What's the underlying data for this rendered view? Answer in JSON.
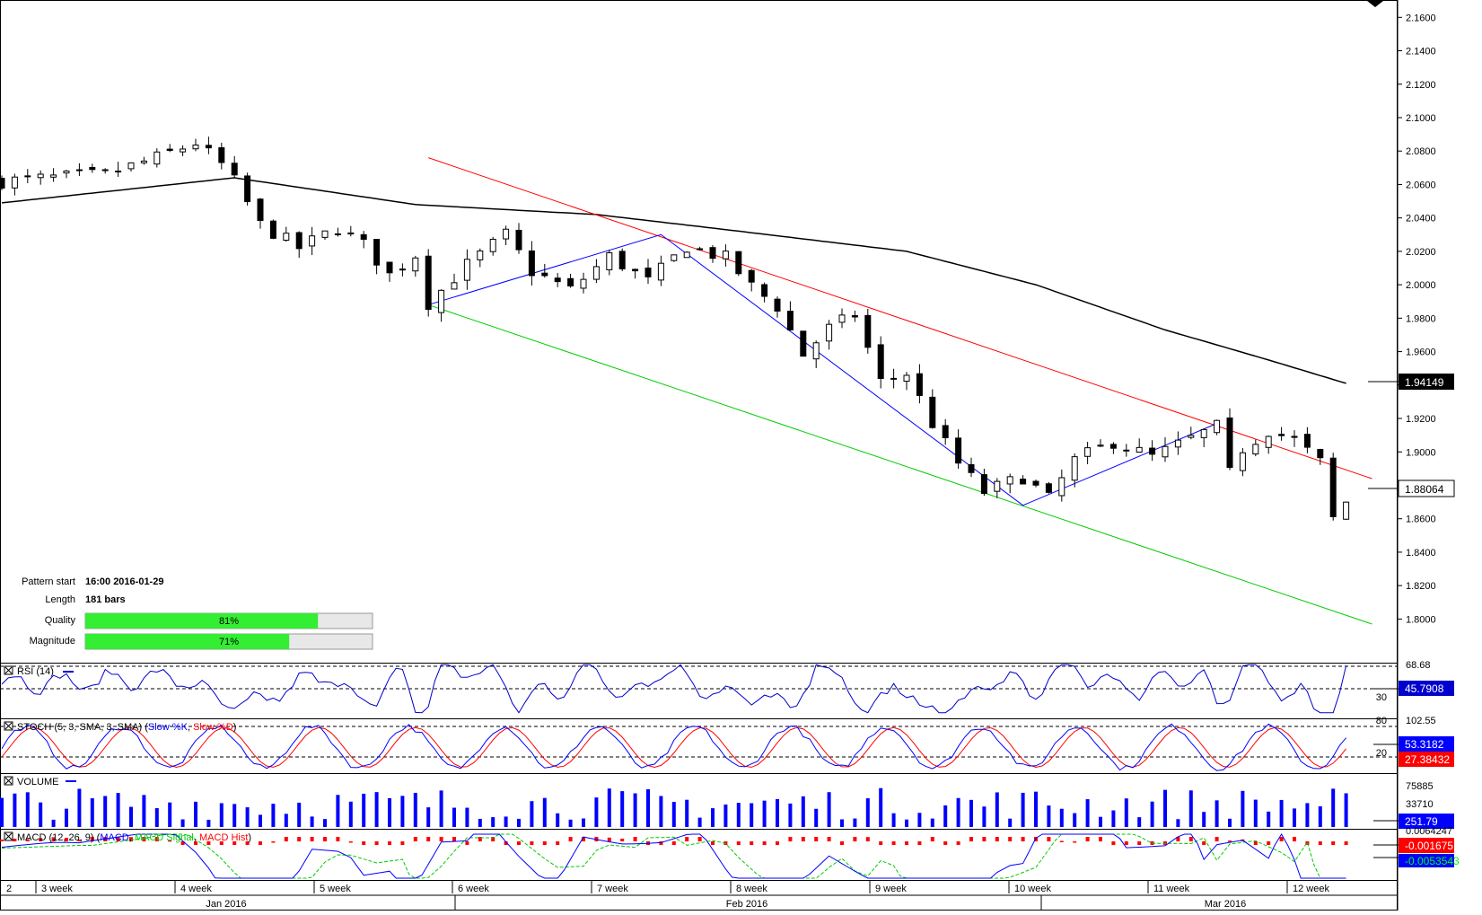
{
  "main_panel": {
    "y_ticks": [
      "2.1600",
      "2.1400",
      "2.1200",
      "2.1000",
      "2.0800",
      "2.0600",
      "2.0400",
      "2.0200",
      "2.0000",
      "1.9800",
      "1.9600",
      "1.9400",
      "1.9200",
      "1.9000",
      "1.8800",
      "1.8600",
      "1.8400",
      "1.8200",
      "1.8000"
    ],
    "ylim": [
      1.79,
      2.165
    ],
    "last_price_ma": "1.94149",
    "last_price": "1.88064"
  },
  "pattern": {
    "start_label": "Pattern start",
    "start_value": "16:00 2016-01-29",
    "length_label": "Length",
    "length_value": "181 bars",
    "quality_label": "Quality",
    "quality_value": "81%",
    "quality_fraction": 0.81,
    "magnitude_label": "Magnitude",
    "magnitude_value": "71%",
    "magnitude_fraction": 0.71
  },
  "rsi": {
    "label": "RSI (14)",
    "max_tick": "68.68",
    "level_30": "30",
    "value": "45.7908"
  },
  "stoch": {
    "label_prefix": "STOCH (5, 3, SMA, 3, SMA)",
    "slow_k_label": "Slow %K",
    "slow_d_label": "Slow %D",
    "max_tick": "102.55",
    "level_80": "80",
    "level_20": "20",
    "k_value": "53.3182",
    "d_value": "27.38432"
  },
  "volume": {
    "label": "VOLUME",
    "tick_top": "75885",
    "tick_mid": "33710",
    "value": "251.79"
  },
  "macd": {
    "label_prefix": "MACD (12, 26, 9)",
    "macd_label": "MACD",
    "signal_label": "MACD Signal",
    "hist_label": "MACD Hist",
    "max_tick": "0.0064247",
    "value_hist": "-0.0016751",
    "value_macd": "-0.0053543"
  },
  "x_axis": {
    "week_labels": [
      "2",
      "3 week",
      "4 week",
      "5 week",
      "6 week",
      "7 week",
      "8 week",
      "9 week",
      "10 week",
      "11 week",
      "12 week"
    ],
    "month_labels": [
      "Jan 2016",
      "Feb 2016",
      "Mar 2016"
    ]
  },
  "colors": {
    "up_candle": "#ffffff",
    "down_candle": "#000000",
    "ma_line": "#000000",
    "resistance_line": "#ff0000",
    "support_line": "#00cc00",
    "zigzag": "#0000ff",
    "rsi_line": "#0000cc",
    "stoch_k": "#0000ff",
    "stoch_d": "#ff0000",
    "volume_bar": "#0000ff",
    "macd_line": "#0000ff",
    "signal_line": "#00cc00",
    "hist_bar": "#ff0000",
    "bar_fill": "#33ee33",
    "bar_bg": "#e8e8e8"
  },
  "chart_data": {
    "type": "candlestick",
    "x_axis": "weeks, Jan–Mar 2016",
    "ylim": [
      1.79,
      2.165
    ],
    "price_path": [
      [
        0,
        2.062
      ],
      [
        8,
        2.066
      ],
      [
        12,
        2.076
      ],
      [
        15,
        2.085
      ],
      [
        17,
        2.072
      ],
      [
        18,
        2.062
      ],
      [
        20,
        2.036
      ],
      [
        23,
        2.022
      ],
      [
        26,
        2.034
      ],
      [
        28,
        2.024
      ],
      [
        30,
        2.006
      ],
      [
        32,
        2.018
      ],
      [
        33,
        1.989
      ],
      [
        36,
        2.012
      ],
      [
        39,
        2.03
      ],
      [
        41,
        2.008
      ],
      [
        44,
        1.997
      ],
      [
        47,
        2.017
      ],
      [
        50,
        2.002
      ],
      [
        53,
        2.023
      ],
      [
        56,
        2.016
      ],
      [
        58,
        1.999
      ],
      [
        60,
        1.987
      ],
      [
        62,
        1.958
      ],
      [
        64,
        1.974
      ],
      [
        66,
        1.982
      ],
      [
        68,
        1.942
      ],
      [
        70,
        1.947
      ],
      [
        72,
        1.917
      ],
      [
        74,
        1.893
      ],
      [
        76,
        1.876
      ],
      [
        79,
        1.885
      ],
      [
        81,
        1.872
      ],
      [
        83,
        1.895
      ],
      [
        86,
        1.906
      ],
      [
        89,
        1.897
      ],
      [
        92,
        1.908
      ],
      [
        94,
        1.915
      ],
      [
        95,
        1.887
      ],
      [
        96,
        1.902
      ],
      [
        98,
        1.913
      ],
      [
        100,
        1.907
      ],
      [
        102,
        1.894
      ],
      [
        103,
        1.86
      ],
      [
        104,
        1.87
      ]
    ],
    "moving_average": [
      [
        0,
        2.049
      ],
      [
        18,
        2.064
      ],
      [
        32,
        2.048
      ],
      [
        46,
        2.042
      ],
      [
        56,
        2.033
      ],
      [
        70,
        2.02
      ],
      [
        80,
        2.0
      ],
      [
        90,
        1.973
      ],
      [
        98,
        1.955
      ],
      [
        104,
        1.941
      ]
    ],
    "resistance_line": [
      [
        33,
        2.076
      ],
      [
        106,
        1.884
      ]
    ],
    "support_line": [
      [
        33,
        1.988
      ],
      [
        106,
        1.797
      ]
    ],
    "zigzag": [
      [
        33,
        1.988
      ],
      [
        51,
        2.03
      ],
      [
        79,
        1.868
      ],
      [
        94,
        1.917
      ]
    ]
  }
}
